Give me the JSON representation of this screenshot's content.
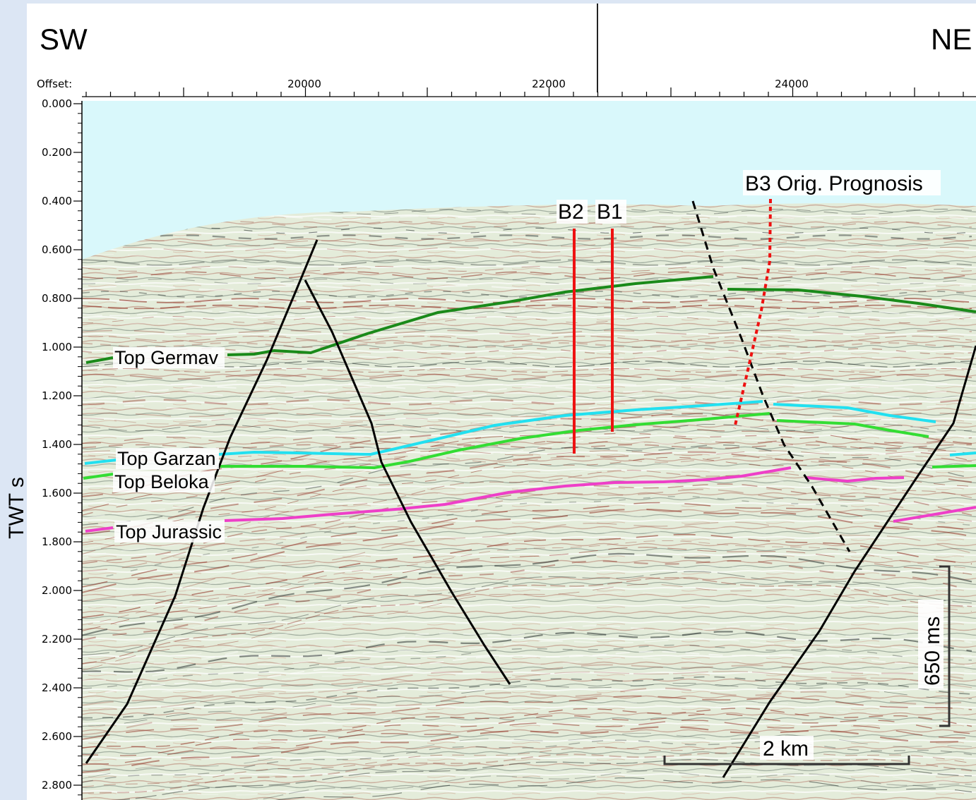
{
  "header": {
    "left_direction": "SW",
    "right_direction": "NE",
    "offset_label": "Offset:",
    "x_ticks": [
      "20000",
      "22000",
      "24000"
    ]
  },
  "axis": {
    "y_title": "TWT s",
    "y_ticks": [
      "0.000",
      "0.200",
      "0.400",
      "0.600",
      "0.800",
      "1.000",
      "1.200",
      "1.400",
      "1.600",
      "1.800",
      "2.000",
      "2.200",
      "2.400",
      "2.600",
      "2.800"
    ]
  },
  "horizons": [
    {
      "label": "Top Germav",
      "color": "#1a8a1a"
    },
    {
      "label": "Top Garzan",
      "color": "#22e0f0"
    },
    {
      "label": "Top Beloka",
      "color": "#33dd33"
    },
    {
      "label": "Top Jurassic",
      "color": "#ee3fc8"
    }
  ],
  "wells": [
    {
      "label": "B2",
      "color": "#ee1111"
    },
    {
      "label": "B1",
      "color": "#ee1111"
    },
    {
      "label": "B3 Orig. Prognosis",
      "color": "#ee1111"
    }
  ],
  "scale_bars": {
    "horizontal": "2 km",
    "vertical": "650 ms"
  },
  "colors": {
    "water": "#d9f8fb",
    "seismic_base": "#e4ecda",
    "fault": "#000000"
  }
}
